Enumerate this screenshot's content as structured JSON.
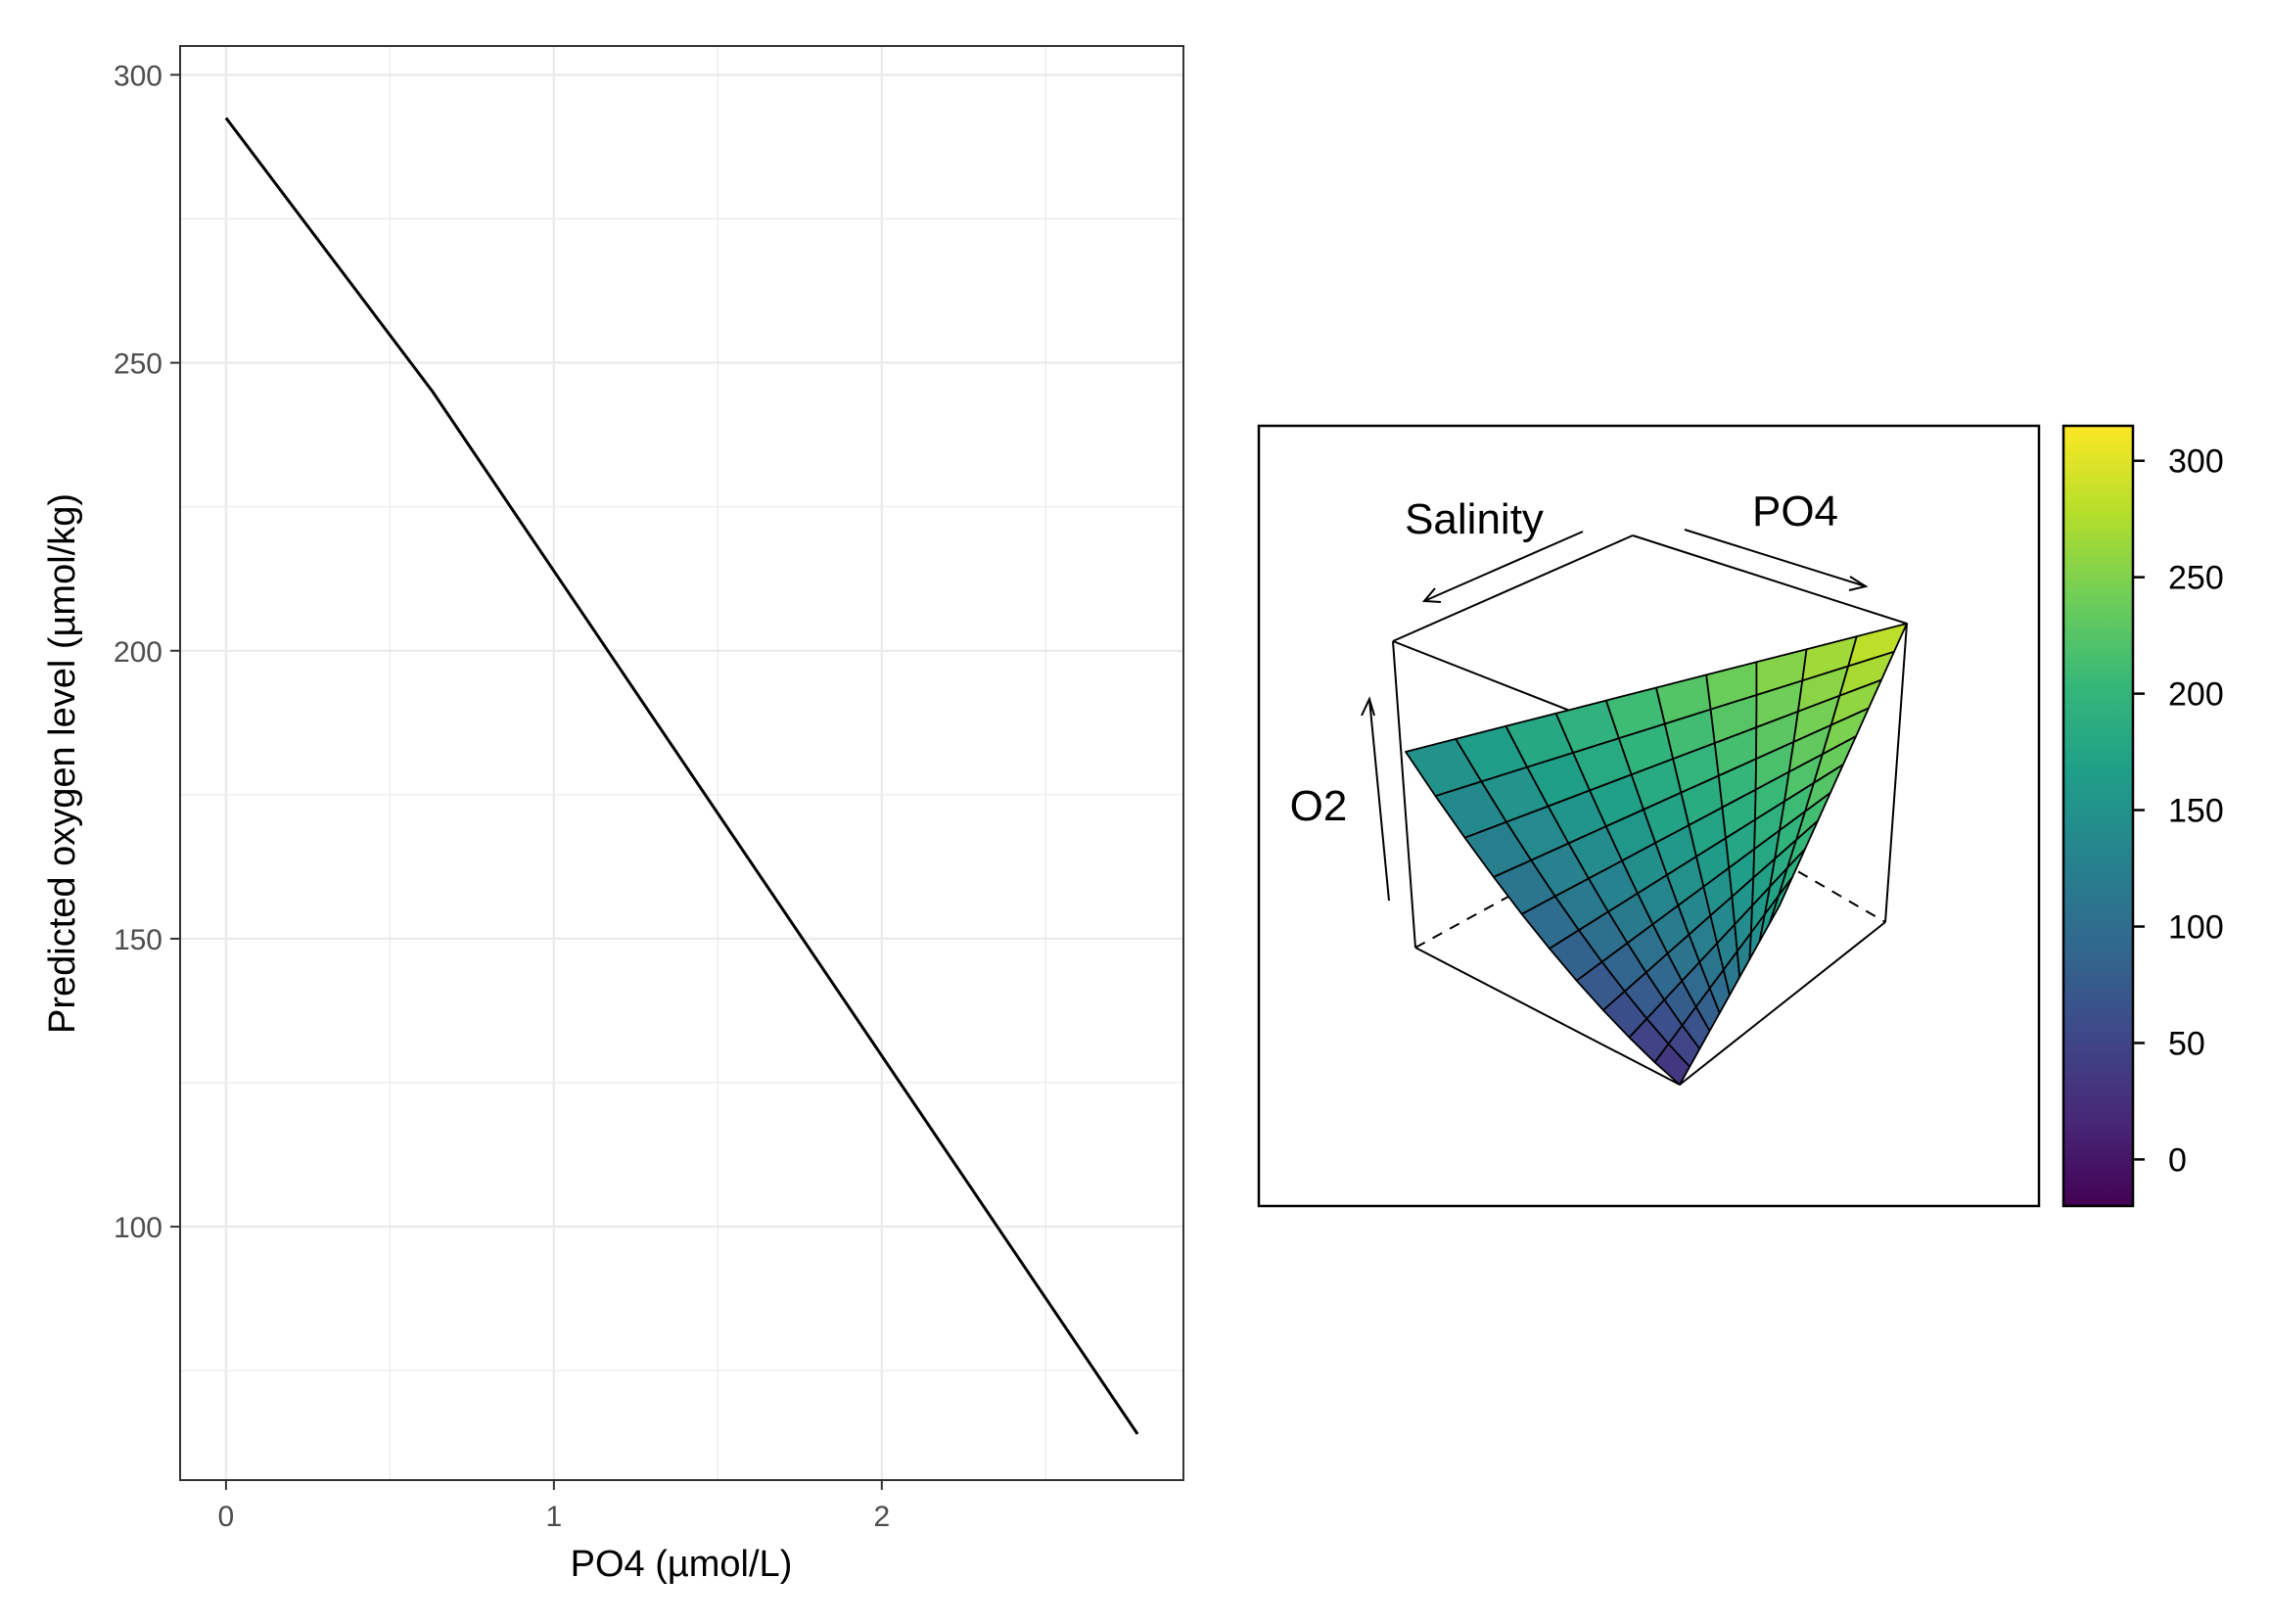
{
  "chart_data": [
    {
      "type": "line",
      "title": "",
      "xlabel": "PO4 (µmol/L)",
      "ylabel": "Predicted oxygen level (µmol/kg)",
      "xlim": [
        -0.14,
        2.92
      ],
      "ylim": [
        56,
        305
      ],
      "x_ticks": [
        0,
        1,
        2
      ],
      "x_tick_labels": [
        "0",
        "1",
        "2"
      ],
      "y_ticks": [
        100,
        150,
        200,
        250,
        300
      ],
      "y_tick_labels": [
        "100",
        "150",
        "200",
        "250",
        "300"
      ],
      "grid": true,
      "series": [
        {
          "color": "#000000",
          "x": [
            0,
            0.63,
            2.78
          ],
          "y": [
            292.5,
            245,
            64
          ]
        }
      ]
    },
    {
      "type": "surface",
      "title": "",
      "axis_labels": {
        "salinity": "Salinity",
        "po4": "PO4",
        "o2": "O2"
      },
      "colorbar": {
        "colormap": "viridis",
        "range": [
          -20,
          315
        ],
        "ticks": [
          0,
          50,
          100,
          150,
          200,
          250,
          300
        ],
        "tick_labels": [
          "0",
          "50",
          "100",
          "150",
          "200",
          "250",
          "300"
        ],
        "stops": [
          "#440154",
          "#482878",
          "#3e4989",
          "#31688e",
          "#26828e",
          "#1f9e89",
          "#35b779",
          "#6ece58",
          "#b5de2b",
          "#fde725"
        ]
      },
      "surface": {
        "grid_size": 11,
        "z_low": 20,
        "z_salinity_end": 150,
        "z_po4_end": 180,
        "z_high": 295
      }
    }
  ]
}
